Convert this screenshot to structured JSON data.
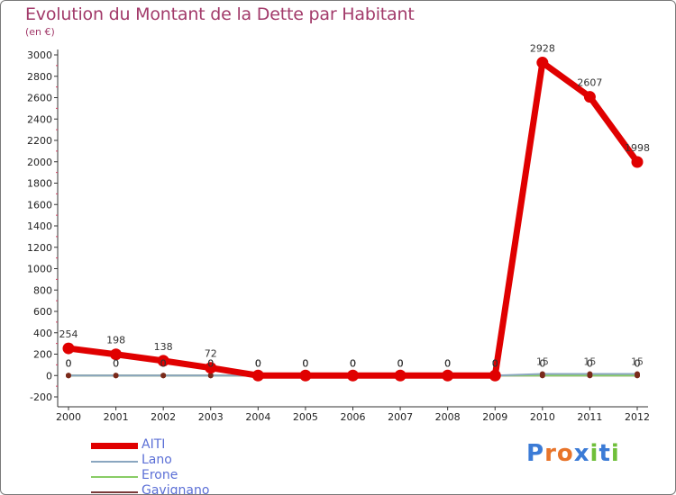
{
  "title": "Evolution du Montant de la Dette par Habitant",
  "subtitle": "(en €)",
  "logo": {
    "text": "Proxiti",
    "letters": [
      "P",
      "r",
      "o",
      "x",
      "i",
      "t",
      "i"
    ],
    "colors": [
      "#3b7bd6",
      "#e8742a",
      "#e8742a",
      "#3b7bd6",
      "#6fbf3a",
      "#3b7bd6",
      "#6fbf3a"
    ]
  },
  "chart_data": {
    "type": "line",
    "title": "Evolution du Montant de la Dette par Habitant",
    "ylabel": "(en €)",
    "xlabel": "",
    "x": [
      "2000",
      "2001",
      "2002",
      "2003",
      "2004",
      "2005",
      "2006",
      "2007",
      "2008",
      "2009",
      "2010",
      "2011",
      "2012"
    ],
    "ylim": [
      -200,
      3000
    ],
    "yticks": [
      -200,
      0,
      200,
      400,
      600,
      800,
      1000,
      1200,
      1400,
      1600,
      1800,
      2000,
      2200,
      2400,
      2600,
      2800,
      3000
    ],
    "grid": false,
    "legend": "bottom-left",
    "series": [
      {
        "name": "AITI",
        "color": "#e00000",
        "values": [
          254,
          198,
          138,
          72,
          0,
          0,
          0,
          0,
          0,
          0,
          2928,
          2607,
          1998
        ],
        "labels": [
          "254",
          "198",
          "138",
          "72",
          "0",
          "0",
          "0",
          "0",
          "0",
          "0",
          "2928",
          "2607",
          "1998"
        ]
      },
      {
        "name": "Lano",
        "color": "#8aa6c0",
        "values": [
          0,
          0,
          0,
          0,
          0,
          0,
          0,
          0,
          0,
          0,
          15,
          15,
          15
        ],
        "labels": [
          "0",
          "0",
          "0",
          "0",
          "0",
          "0",
          "0",
          "0",
          "0",
          "0",
          "15",
          "15",
          "15"
        ]
      },
      {
        "name": "Erone",
        "color": "#88cc66",
        "values": [
          0,
          0,
          0,
          0,
          0,
          0,
          0,
          0,
          0,
          0,
          0,
          0,
          0
        ],
        "labels": [
          "0",
          "0",
          "0",
          "0",
          "0",
          "0",
          "0",
          "0",
          "0",
          "0",
          "0",
          "0",
          "0"
        ]
      },
      {
        "name": "Gavignano",
        "color": "#7a3a3a",
        "values": [
          0,
          0,
          0,
          0,
          0,
          0,
          0,
          0,
          0,
          0,
          0,
          0,
          0
        ],
        "labels": [
          "0",
          "0",
          "0",
          "0",
          "0",
          "0",
          "0",
          "0",
          "0",
          "0",
          "0",
          "0",
          "0"
        ]
      }
    ]
  }
}
